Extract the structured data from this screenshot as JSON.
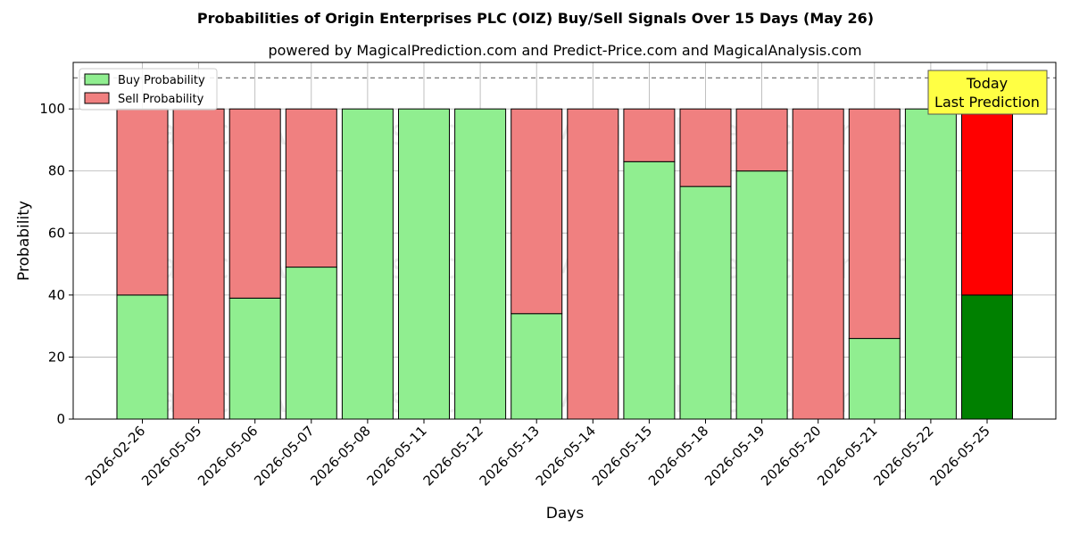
{
  "chart_data": {
    "type": "bar",
    "stacked": true,
    "title": "Probabilities of Origin Enterprises PLC (OIZ) Buy/Sell Signals Over 15 Days (May 26)",
    "subtitle": "powered by MagicalPrediction.com and Predict-Price.com and MagicalAnalysis.com",
    "xlabel": "Days",
    "ylabel": "Probability",
    "ylim": [
      0,
      115
    ],
    "yticks": [
      0,
      20,
      40,
      60,
      80,
      100
    ],
    "grid": true,
    "legend_placement": "top-left",
    "reference_line": 110,
    "categories": [
      "2026-02-26",
      "2026-05-05",
      "2026-05-06",
      "2026-05-07",
      "2026-05-08",
      "2026-05-11",
      "2026-05-12",
      "2026-05-13",
      "2026-05-14",
      "2026-05-15",
      "2026-05-18",
      "2026-05-19",
      "2026-05-20",
      "2026-05-21",
      "2026-05-22",
      "2026-05-25"
    ],
    "series": [
      {
        "name": "Buy Probability",
        "color": "#90ee90",
        "highlight_color": "#008000",
        "values": [
          40,
          0,
          39,
          49,
          100,
          100,
          100,
          34,
          0,
          83,
          75,
          80,
          0,
          26,
          100,
          40
        ]
      },
      {
        "name": "Sell Probability",
        "color": "#f08080",
        "highlight_color": "#ff0000",
        "values": [
          60,
          100,
          61,
          51,
          0,
          0,
          0,
          66,
          100,
          17,
          25,
          20,
          100,
          74,
          0,
          60
        ]
      }
    ],
    "annotation": {
      "line1": "Today",
      "line2": "Last Prediction",
      "color": "#ffff44"
    },
    "watermarks": [
      "MagicalAnalysis.com",
      "MagicalPrediction.com"
    ]
  }
}
